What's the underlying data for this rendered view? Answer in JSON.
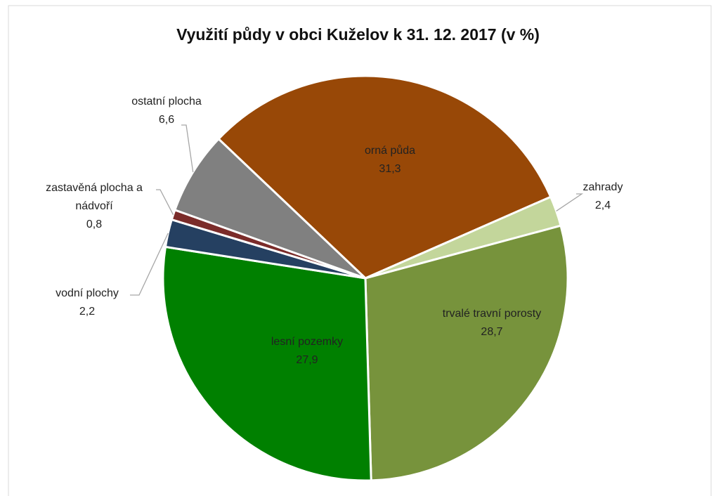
{
  "chart_data": {
    "type": "pie",
    "title": "Využití půdy v obci Kuželov k 31. 12. 2017 (v %)",
    "categories": [
      "orná půda",
      "zahrady",
      "trvalé travní porosty",
      "lesní pozemky",
      "vodní plochy",
      "zastavěná plocha a nádvoří",
      "ostatní plocha"
    ],
    "values": [
      31.3,
      2.4,
      28.7,
      27.9,
      2.2,
      0.8,
      6.6
    ],
    "value_labels": [
      "31,3",
      "2,4",
      "28,7",
      "27,9",
      "2,2",
      "0,8",
      "6,6"
    ],
    "colors": [
      "#984807",
      "#c3d69b",
      "#77933c",
      "#008000",
      "#254061",
      "#7b2c2a",
      "#808080"
    ]
  }
}
